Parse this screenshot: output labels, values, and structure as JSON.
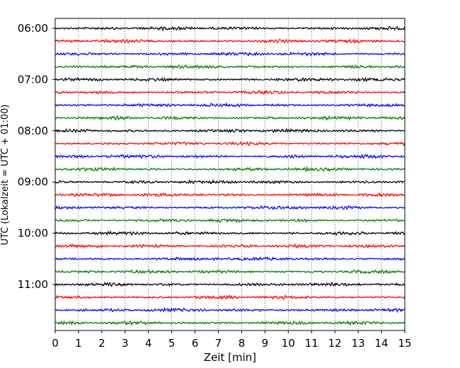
{
  "chart_data": {
    "type": "line",
    "title": "",
    "xlabel": "Zeit  [min]",
    "ylabel": "UTC (Lokalzeit = UTC + 01:00)",
    "xlim": [
      0,
      15
    ],
    "x_ticks": [
      "0",
      "1",
      "2",
      "3",
      "4",
      "5",
      "6",
      "7",
      "8",
      "9",
      "10",
      "11",
      "12",
      "13",
      "14",
      "15"
    ],
    "y_ticks": [
      "06:00",
      "07:00",
      "08:00",
      "09:00",
      "10:00",
      "11:00"
    ],
    "trace_start": "06:00",
    "trace_end": "11:45",
    "trace_interval_min": 15,
    "trace_colors": [
      "#000000",
      "#ff0000",
      "#0000ff",
      "#007f00"
    ],
    "grid": "x-dotted"
  }
}
